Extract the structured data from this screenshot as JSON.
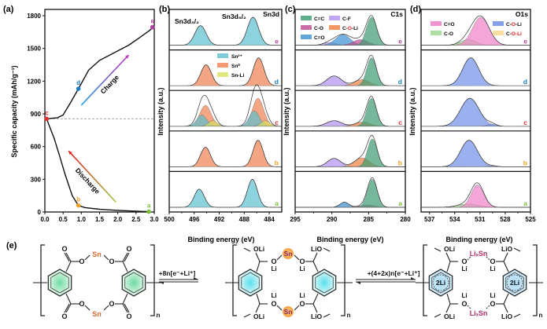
{
  "chart_data": [
    {
      "panel": "(a)",
      "type": "line",
      "title": "",
      "xlabel": "",
      "ylabel": "Specific capacity (mAh/g⁻¹)",
      "xlim": [
        0,
        3.0
      ],
      "ylim": [
        0,
        1800
      ],
      "xticks": [
        "0.0",
        "0.5",
        "1.0",
        "1.5",
        "2.0",
        "2.5",
        "3.0"
      ],
      "xtick_values": [
        0,
        0.5,
        1.0,
        1.5,
        2.0,
        2.5,
        3.0
      ],
      "yticks": [
        "0",
        "300",
        "600",
        "900",
        "1200",
        "1500",
        "1800"
      ],
      "ytick_values": [
        0,
        300,
        600,
        900,
        1200,
        1500,
        1800
      ],
      "reference_line": {
        "y": 855,
        "style": "dashed",
        "color": "#888888"
      },
      "series": [
        {
          "name": "Discharge",
          "color": "#111111",
          "x": [
            2.85,
            2.5,
            2.0,
            1.5,
            1.1,
            0.92,
            0.75,
            0.55,
            0.4,
            0.25,
            0.12,
            0.05
          ],
          "y": [
            3,
            8,
            15,
            25,
            40,
            60,
            150,
            350,
            520,
            680,
            790,
            855
          ]
        },
        {
          "name": "Charge",
          "color": "#111111",
          "x": [
            0.05,
            0.2,
            0.35,
            0.5,
            0.7,
            0.92,
            1.2,
            1.5,
            1.9,
            2.3,
            2.6,
            2.85,
            3.0
          ],
          "y": [
            855,
            860,
            865,
            890,
            1000,
            1130,
            1300,
            1390,
            1460,
            1530,
            1600,
            1660,
            1700
          ]
        }
      ],
      "points": [
        {
          "label": "a",
          "x": 2.85,
          "y": 3,
          "color": "#7bbf3a"
        },
        {
          "label": "b",
          "x": 0.92,
          "y": 60,
          "color": "#f0a020"
        },
        {
          "label": "c",
          "x": 0.05,
          "y": 855,
          "color": "#e0302a"
        },
        {
          "label": "d",
          "x": 0.92,
          "y": 1130,
          "color": "#1a7fc0"
        },
        {
          "label": "e",
          "x": 2.95,
          "y": 1695,
          "color": "#b040a0"
        }
      ],
      "annotations": [
        {
          "text": "Charge",
          "arrow_from": [
            1.0,
            980
          ],
          "arrow_to": [
            2.3,
            1440
          ],
          "gradient": [
            "#1aa0e0",
            "#c030c0"
          ]
        },
        {
          "text": "Discharge",
          "arrow_from": [
            1.95,
            90
          ],
          "arrow_to": [
            0.65,
            560
          ],
          "gradient": [
            "#a0c840",
            "#e02020"
          ]
        }
      ]
    },
    {
      "panel": "(b)",
      "type": "area",
      "title": "Sn3d",
      "xlabel": "Binding energy (eV)",
      "ylabel": "Intensity (a.u.)",
      "xlim": [
        500,
        482
      ],
      "xticks": [
        "500",
        "496",
        "492",
        "488",
        "484"
      ],
      "xtick_values": [
        500,
        496,
        492,
        488,
        484
      ],
      "peak_labels": [
        "Sn3d₃/₂",
        "Sn3d₅/₂"
      ],
      "legend": [
        {
          "name": "Sn²⁺",
          "color": "#5cc0d0"
        },
        {
          "name": "Sn⁰",
          "color": "#f08050"
        },
        {
          "name": "Sn-Li",
          "color": "#d8e060"
        }
      ],
      "legend_placement": "top-center (panel d row)",
      "spectra": [
        {
          "label": "e",
          "label_color": "#b040a0",
          "components": [
            {
              "name": "Sn²⁺",
              "peaks": [
                {
                  "center": 495.0,
                  "height": 0.7,
                  "width": 0.9
                },
                {
                  "center": 486.6,
                  "height": 1.0,
                  "width": 0.9
                }
              ]
            }
          ]
        },
        {
          "label": "d",
          "label_color": "#1a7fc0",
          "components": [
            {
              "name": "Sn⁰",
              "peaks": [
                {
                  "center": 494.1,
                  "height": 0.75,
                  "width": 0.85
                },
                {
                  "center": 485.7,
                  "height": 1.0,
                  "width": 0.85
                }
              ]
            }
          ]
        },
        {
          "label": "c",
          "label_color": "#e0302a",
          "components": [
            {
              "name": "Sn⁰",
              "peaks": [
                {
                  "center": 494.2,
                  "height": 0.75,
                  "width": 0.9
                },
                {
                  "center": 485.8,
                  "height": 1.0,
                  "width": 0.9
                }
              ]
            },
            {
              "name": "Sn²⁺",
              "peaks": [
                {
                  "center": 494.8,
                  "height": 0.4,
                  "width": 0.8
                },
                {
                  "center": 486.4,
                  "height": 0.55,
                  "width": 0.8
                }
              ]
            },
            {
              "name": "Sn-Li",
              "peaks": [
                {
                  "center": 493.0,
                  "height": 0.2,
                  "width": 0.7
                },
                {
                  "center": 484.6,
                  "height": 0.2,
                  "width": 0.7
                }
              ]
            }
          ]
        },
        {
          "label": "b",
          "label_color": "#f0a020",
          "components": [
            {
              "name": "Sn⁰",
              "peaks": [
                {
                  "center": 494.2,
                  "height": 0.7,
                  "width": 0.8
                },
                {
                  "center": 485.8,
                  "height": 0.95,
                  "width": 0.8
                }
              ]
            }
          ]
        },
        {
          "label": "a",
          "label_color": "#7bbf3a",
          "components": [
            {
              "name": "Sn²⁺",
              "peaks": [
                {
                  "center": 495.2,
                  "height": 0.65,
                  "width": 0.8
                },
                {
                  "center": 486.7,
                  "height": 1.0,
                  "width": 0.8
                }
              ]
            }
          ]
        }
      ]
    },
    {
      "panel": "(c)",
      "type": "area",
      "title": "C1s",
      "xlabel": "Binding energy (eV)",
      "ylabel": "Intensity (a.u.)",
      "xlim": [
        295,
        280
      ],
      "xticks": [
        "295",
        "290",
        "285",
        "280"
      ],
      "xtick_values": [
        295,
        290,
        285,
        280
      ],
      "legend": [
        {
          "name": "C=C",
          "color": "#3a9a70"
        },
        {
          "name": "C-F",
          "color": "#b090f0"
        },
        {
          "name": "C-O",
          "color": "#c04890"
        },
        {
          "name": "C-O-Li",
          "color": "#f08040"
        },
        {
          "name": "C=O",
          "color": "#3a90d0"
        }
      ],
      "legend_placement": "top-left",
      "spectra": [
        {
          "label": "e",
          "label_color": "#b040a0",
          "components": [
            {
              "name": "C-F",
              "peaks": [
                {
                  "center": 290.3,
                  "height": 0.1,
                  "width": 0.8
                }
              ]
            },
            {
              "name": "C=O",
              "peaks": [
                {
                  "center": 288.5,
                  "height": 0.38,
                  "width": 1.0
                }
              ]
            },
            {
              "name": "C-O",
              "peaks": [
                {
                  "center": 286.1,
                  "height": 0.2,
                  "width": 1.0
                }
              ]
            },
            {
              "name": "C=C",
              "peaks": [
                {
                  "center": 284.6,
                  "height": 1.0,
                  "width": 0.7
                }
              ]
            }
          ]
        },
        {
          "label": "d",
          "label_color": "#1a7fc0",
          "components": [
            {
              "name": "C-F",
              "peaks": [
                {
                  "center": 289.7,
                  "height": 0.35,
                  "width": 1.0
                }
              ]
            },
            {
              "name": "C-O-Li",
              "peaks": [
                {
                  "center": 285.9,
                  "height": 0.22,
                  "width": 1.0
                }
              ]
            },
            {
              "name": "C=C",
              "peaks": [
                {
                  "center": 284.6,
                  "height": 1.0,
                  "width": 0.65
                }
              ]
            }
          ]
        },
        {
          "label": "c",
          "label_color": "#e0302a",
          "components": [
            {
              "name": "C-F",
              "peaks": [
                {
                  "center": 289.7,
                  "height": 0.2,
                  "width": 1.0
                }
              ]
            },
            {
              "name": "C-O-Li",
              "peaks": [
                {
                  "center": 285.8,
                  "height": 0.15,
                  "width": 1.0
                }
              ]
            },
            {
              "name": "C=C",
              "peaks": [
                {
                  "center": 284.6,
                  "height": 1.0,
                  "width": 0.65
                }
              ]
            }
          ]
        },
        {
          "label": "b",
          "label_color": "#f0a020",
          "components": [
            {
              "name": "C-F",
              "peaks": [
                {
                  "center": 289.7,
                  "height": 0.3,
                  "width": 0.9
                }
              ]
            },
            {
              "name": "C-O-Li",
              "peaks": [
                {
                  "center": 285.9,
                  "height": 0.32,
                  "width": 1.0
                }
              ]
            },
            {
              "name": "C=C",
              "peaks": [
                {
                  "center": 284.5,
                  "height": 1.0,
                  "width": 0.65
                }
              ]
            }
          ]
        },
        {
          "label": "a",
          "label_color": "#7bbf3a",
          "components": [
            {
              "name": "C=O",
              "peaks": [
                {
                  "center": 288.3,
                  "height": 0.18,
                  "width": 0.6
                }
              ]
            },
            {
              "name": "C-O",
              "peaks": [
                {
                  "center": 285.2,
                  "height": 0.08,
                  "width": 1.0
                }
              ]
            },
            {
              "name": "C=C",
              "peaks": [
                {
                  "center": 284.5,
                  "height": 1.0,
                  "width": 0.65
                }
              ]
            }
          ]
        }
      ]
    },
    {
      "panel": "(d)",
      "type": "area",
      "title": "O1s",
      "xlabel": "Binding energy (eV)",
      "ylabel": "Intensity (a.u.)",
      "xlim": [
        538,
        525
      ],
      "xticks": [
        "537",
        "534",
        "531",
        "528",
        "525"
      ],
      "xtick_values": [
        537,
        534,
        531,
        528,
        525
      ],
      "legend": [
        {
          "name": "C=O",
          "color": "#f080c8"
        },
        {
          "name": "C-O",
          "color": "#a0d890"
        },
        {
          "name": "C-O-Li",
          "color": "#7090e8",
          "highlight": "O",
          "highlight_color": "#e02020"
        },
        {
          "name": "C-O-Li",
          "color": "#f8d890",
          "highlight": "O-Li",
          "highlight_color": "#e02020"
        }
      ],
      "legend_placement": "top",
      "spectra": [
        {
          "label": "e",
          "label_color": "#b040a0",
          "components": [
            {
              "name": "C-O",
              "peaks": [
                {
                  "center": 532.4,
                  "height": 0.2,
                  "width": 0.9
                }
              ]
            },
            {
              "name": "C=O",
              "peaks": [
                {
                  "center": 530.9,
                  "height": 1.0,
                  "width": 1.0
                }
              ]
            }
          ]
        },
        {
          "label": "d",
          "label_color": "#1a7fc0",
          "components": [
            {
              "name": "C-O-Li",
              "peaks": [
                {
                  "center": 532.1,
                  "height": 1.0,
                  "width": 0.95
                }
              ]
            }
          ]
        },
        {
          "label": "c",
          "label_color": "#e0302a",
          "components": [
            {
              "name": "C-O-Li",
              "peaks": [
                {
                  "center": 532.2,
                  "height": 1.0,
                  "width": 1.1
                }
              ]
            },
            {
              "name": "C-O-Li",
              "peaks": [
                {
                  "center": 529.6,
                  "height": 0.08,
                  "width": 0.5
                }
              ]
            }
          ]
        },
        {
          "label": "b",
          "label_color": "#f0a020",
          "components": [
            {
              "name": "C-O-Li",
              "peaks": [
                {
                  "center": 532.3,
                  "height": 0.95,
                  "width": 1.0
                }
              ]
            },
            {
              "name": "C-O-Li",
              "peaks": [
                {
                  "center": 529.6,
                  "height": 0.03,
                  "width": 0.6
                }
              ]
            }
          ]
        },
        {
          "label": "a",
          "label_color": "#7bbf3a",
          "components": [
            {
              "name": "C-O",
              "peaks": [
                {
                  "center": 532.4,
                  "height": 0.12,
                  "width": 1.2
                }
              ]
            },
            {
              "name": "C=O",
              "peaks": [
                {
                  "center": 531.3,
                  "height": 0.8,
                  "width": 0.75
                }
              ]
            }
          ]
        }
      ]
    }
  ],
  "scheme": {
    "panel_label": "(e)",
    "arrow1_label": "+8n[e⁻+Li⁺]",
    "arrow2_label": "+(4+2x)n[e⁻+Li⁺]",
    "subscript_n": "n",
    "sn": "Sn",
    "o": "O",
    "li": "Li",
    "oli": "OLi",
    "lio": "LiO",
    "lixsn": "LiₓSn",
    "ring_2li": "2Li"
  },
  "colors": {
    "sn_orange": "#e06a30",
    "sn_purple": "#8a2060",
    "lixsn": "#b0306a"
  }
}
